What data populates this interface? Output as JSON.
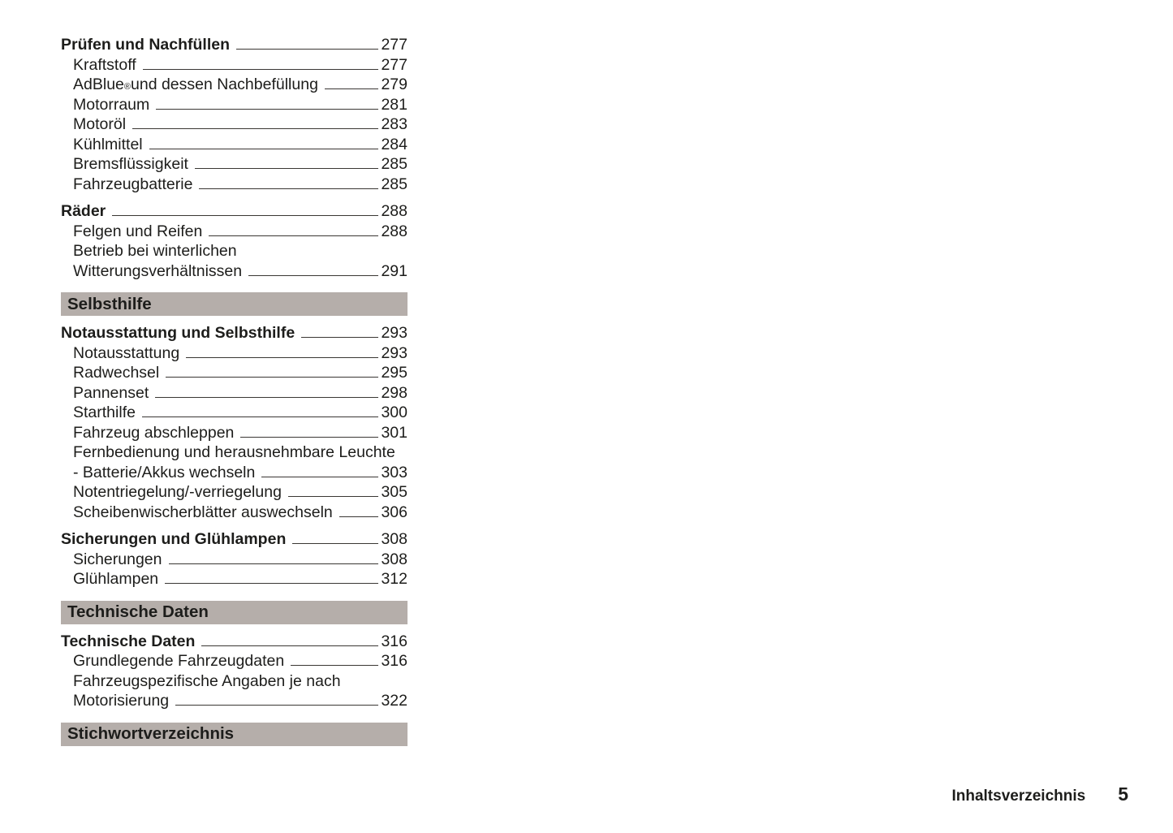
{
  "colors": {
    "text": "#1d1d1b",
    "section_bar_bg": "#b5aeaa",
    "leader_line": "#3a3734",
    "page_bg": "#ffffff"
  },
  "footer": {
    "label": "Inhaltsverzeichnis",
    "page_number": "5"
  },
  "toc": {
    "sections": [
      {
        "bar": null,
        "groups": [
          {
            "entries": [
              {
                "bold": true,
                "label": "Prüfen und Nachfüllen",
                "page": "277"
              },
              {
                "label": "Kraftstoff",
                "page": "277"
              },
              {
                "label": "AdBlue",
                "sup": "®",
                "label_cont": " und dessen Nachbefüllung",
                "page": "279"
              },
              {
                "label": "Motorraum",
                "page": "281"
              },
              {
                "label": "Motoröl",
                "page": "283"
              },
              {
                "label": "Kühlmittel",
                "page": "284"
              },
              {
                "label": "Bremsflüssigkeit",
                "page": "285"
              },
              {
                "label": "Fahrzeugbatterie",
                "page": "285"
              }
            ]
          },
          {
            "entries": [
              {
                "bold": true,
                "label": "Räder",
                "page": "288"
              },
              {
                "label": "Felgen und Reifen",
                "page": "288"
              },
              {
                "wrap_first": "Betrieb bei winterlichen",
                "label": "Witterungsverhältnissen",
                "page": "291"
              }
            ]
          }
        ]
      },
      {
        "bar": "Selbsthilfe",
        "groups": [
          {
            "entries": [
              {
                "bold": true,
                "label": "Notausstattung und Selbsthilfe",
                "page": "293"
              },
              {
                "label": "Notausstattung",
                "page": "293"
              },
              {
                "label": "Radwechsel",
                "page": "295"
              },
              {
                "label": "Pannenset",
                "page": "298"
              },
              {
                "label": "Starthilfe",
                "page": "300"
              },
              {
                "label": "Fahrzeug abschleppen",
                "page": "301"
              },
              {
                "wrap_first": "Fernbedienung und herausnehmbare Leuchte",
                "label": "- Batterie/Akkus wechseln",
                "page": "303"
              },
              {
                "label": "Notentriegelung/-verriegelung",
                "page": "305"
              },
              {
                "label": "Scheibenwischerblätter auswechseln",
                "page": "306"
              }
            ]
          },
          {
            "entries": [
              {
                "bold": true,
                "label": "Sicherungen und Glühlampen",
                "page": "308"
              },
              {
                "label": "Sicherungen",
                "page": "308"
              },
              {
                "label": "Glühlampen",
                "page": "312"
              }
            ]
          }
        ]
      },
      {
        "bar": "Technische Daten",
        "groups": [
          {
            "entries": [
              {
                "bold": true,
                "label": "Technische Daten",
                "page": "316"
              },
              {
                "label": "Grundlegende Fahrzeugdaten",
                "page": "316"
              },
              {
                "wrap_first": "Fahrzeugspezifische Angaben je nach",
                "label": "Motorisierung",
                "page": "322"
              }
            ]
          }
        ]
      },
      {
        "bar": "Stichwortverzeichnis",
        "groups": []
      }
    ]
  }
}
